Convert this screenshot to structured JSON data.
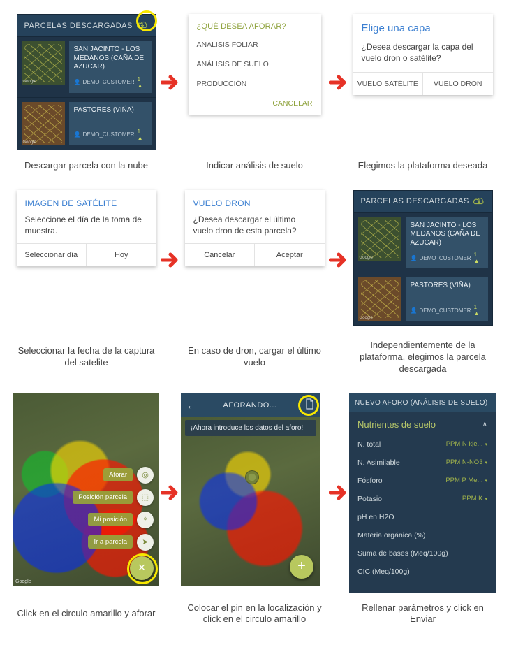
{
  "arrows": {
    "color": "#e63226"
  },
  "highlight_circle_color": "#f7e700",
  "panelA": {
    "header": "PARCELAS DESCARGADAS",
    "rows": [
      {
        "name": "SAN JACINTO - LOS MEDANOS  (CAÑA DE AZUCAR)",
        "user": "DEMO_CUSTOMER",
        "count": "1",
        "thumb": "green"
      },
      {
        "name": "PASTORES  (VIÑA)",
        "user": "DEMO_CUSTOMER",
        "count": "1",
        "thumb": "brown"
      }
    ],
    "google_label": "Google"
  },
  "panelB": {
    "title": "¿QUÉ DESEA AFORAR?",
    "options": [
      "ANÁLISIS FOLIAR",
      "ANÁLISIS DE SUELO",
      "PRODUCCIÓN"
    ],
    "cancel": "CANCELAR"
  },
  "panelC": {
    "title": "Elige una capa",
    "body": "¿Desea descargar la capa del vuelo dron o satélite?",
    "btn_left": "VUELO SATÉLITE",
    "btn_right": "VUELO DRON"
  },
  "captions_row1": [
    "Descargar parcela con la nube",
    "Indicar análisis de suelo",
    "Elegimos la plataforma deseada"
  ],
  "panelD": {
    "title": "IMAGEN DE SATÉLITE",
    "body": "Seleccione el día de la toma de muestra.",
    "btn_left": "Seleccionar día",
    "btn_right": "Hoy"
  },
  "panelE": {
    "title": "VUELO DRON",
    "body": "¿Desea descargar el último vuelo dron de esta parcela?",
    "btn_left": "Cancelar",
    "btn_right": "Aceptar"
  },
  "captions_row2": [
    "Seleccionar la fecha de la captura del satelite",
    "En caso de dron, cargar el último vuelo",
    "Independientemente de la plataforma, elegimos la parcela descargada"
  ],
  "panelG": {
    "fab_labels": [
      "Aforar",
      "Posición parcela",
      "Mi posición",
      "Ir a parcela"
    ],
    "google_label": "Google"
  },
  "panelH": {
    "header": "AFORANDO...",
    "hint": "¡Ahora introduce los datos del aforo!"
  },
  "panelI": {
    "header": "NUEVO AFORO (ANÁLISIS DE SUELO)",
    "subtitle": "Nutrientes de suelo",
    "rows": [
      {
        "label": "N. total",
        "unit": "PPM N kje..."
      },
      {
        "label": "N. Asimilable",
        "unit": "PPM N-NO3"
      },
      {
        "label": "Fósforo",
        "unit": "PPM P Me..."
      },
      {
        "label": "Potasio",
        "unit": "PPM K"
      },
      {
        "label": "pH en H2O",
        "unit": ""
      },
      {
        "label": "Materia orgánica (%)",
        "unit": ""
      },
      {
        "label": "Suma de bases (Meq/100g)",
        "unit": ""
      },
      {
        "label": "CIC (Meq/100g)",
        "unit": ""
      }
    ]
  },
  "captions_row3": [
    "Click en el circulo amarillo y aforar",
    "Colocar el pin en la localización y click en el circulo amarillo",
    "Rellenar parámetros y click en Enviar"
  ]
}
